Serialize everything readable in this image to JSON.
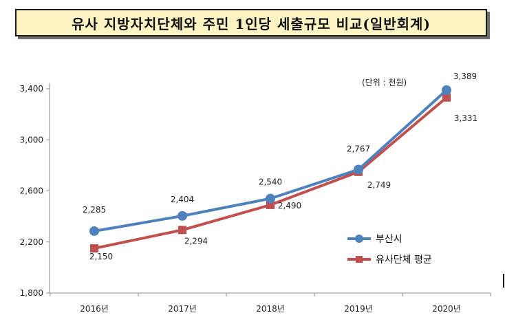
{
  "title": "유사 지방자치단체와 주민 1인당 세출규모 비교(일반회계)",
  "chart_data": {
    "type": "line",
    "title": "유사 지방자치단체와 주민 1인당 세출규모 비교(일반회계)",
    "unit_note": "(단위 : 천원)",
    "categories": [
      "2016년",
      "2017년",
      "2018년",
      "2019년",
      "2020년"
    ],
    "ylim": [
      1800,
      3400
    ],
    "yticks": [
      1800,
      2200,
      2600,
      3000,
      3400
    ],
    "ytick_labels": [
      "1,800",
      "2,200",
      "2,600",
      "3,000",
      "3,400"
    ],
    "grid": false,
    "legend_position": "right",
    "series": [
      {
        "name": "부산시",
        "color": "#4f81bd",
        "marker": "circle",
        "values": [
          2285,
          2404,
          2540,
          2767,
          3389
        ],
        "labels": [
          "2,285",
          "2,404",
          "2,540",
          "2,767",
          "3,389"
        ]
      },
      {
        "name": "유사단체 평균",
        "color": "#c0504d",
        "marker": "square",
        "values": [
          2150,
          2294,
          2490,
          2749,
          3331
        ],
        "labels": [
          "2,150",
          "2,294",
          "2,490",
          "2,749",
          "3,331"
        ]
      }
    ]
  }
}
